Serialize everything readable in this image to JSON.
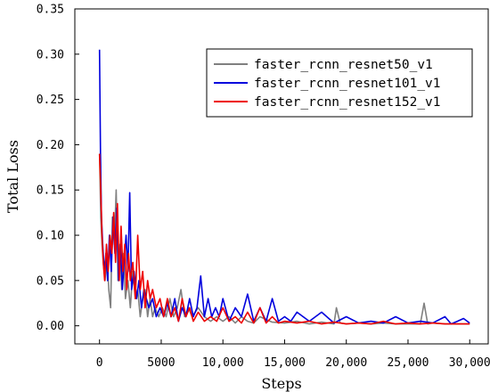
{
  "chart_data": {
    "type": "line",
    "xlabel": "Steps",
    "ylabel": "Total Loss",
    "xlim": [
      -2000,
      31500
    ],
    "ylim": [
      -0.02,
      0.35
    ],
    "x_ticks": [
      0,
      5000,
      10000,
      15000,
      20000,
      25000,
      30000
    ],
    "x_tick_labels": [
      "0",
      "5000",
      "10,000",
      "15,000",
      "20,000",
      "25,000",
      "30,000"
    ],
    "y_ticks": [
      0.0,
      0.05,
      0.1,
      0.15,
      0.2,
      0.25,
      0.3,
      0.35
    ],
    "y_tick_labels": [
      "0.00",
      "0.05",
      "0.10",
      "0.15",
      "0.20",
      "0.25",
      "0.30",
      "0.35"
    ],
    "grid": false,
    "legend": {
      "placement": "top-right"
    },
    "series": [
      {
        "name": "faster_rcnn_resnet50_v1",
        "color": "#808080",
        "x": [
          0,
          100,
          200,
          300,
          450,
          600,
          750,
          900,
          1050,
          1200,
          1350,
          1500,
          1650,
          1800,
          1950,
          2100,
          2300,
          2500,
          2700,
          2900,
          3100,
          3300,
          3500,
          3700,
          3900,
          4100,
          4300,
          4500,
          4800,
          5100,
          5400,
          5700,
          6000,
          6300,
          6600,
          6900,
          7200,
          7500,
          8000,
          8500,
          9000,
          9500,
          10000,
          10500,
          11000,
          11500,
          12000,
          12500,
          13000,
          14000,
          15000,
          16000,
          17000,
          18000,
          18500,
          19000,
          19200,
          19500,
          20000,
          21000,
          22000,
          23000,
          24000,
          25000,
          26000,
          26300,
          26600,
          27000,
          28000,
          29000,
          30000
        ],
        "values": [
          0.19,
          0.12,
          0.09,
          0.07,
          0.05,
          0.08,
          0.04,
          0.02,
          0.12,
          0.09,
          0.15,
          0.05,
          0.09,
          0.04,
          0.08,
          0.03,
          0.05,
          0.02,
          0.06,
          0.03,
          0.04,
          0.01,
          0.03,
          0.04,
          0.01,
          0.03,
          0.01,
          0.02,
          0.01,
          0.02,
          0.01,
          0.03,
          0.01,
          0.02,
          0.04,
          0.01,
          0.02,
          0.01,
          0.02,
          0.01,
          0.005,
          0.01,
          0.005,
          0.01,
          0.003,
          0.01,
          0.005,
          0.003,
          0.01,
          0.004,
          0.003,
          0.005,
          0.002,
          0.004,
          0.003,
          0.002,
          0.02,
          0.003,
          0.002,
          0.003,
          0.002,
          0.003,
          0.002,
          0.002,
          0.002,
          0.025,
          0.002,
          0.003,
          0.002,
          0.002,
          0.002
        ]
      },
      {
        "name": "faster_rcnn_resnet101_v1",
        "color": "#0000dd",
        "x": [
          0,
          80,
          160,
          260,
          380,
          520,
          660,
          800,
          950,
          1100,
          1250,
          1400,
          1550,
          1700,
          1850,
          2000,
          2150,
          2300,
          2450,
          2600,
          2800,
          3000,
          3200,
          3400,
          3600,
          3800,
          4000,
          4300,
          4600,
          4900,
          5200,
          5500,
          5800,
          6100,
          6400,
          6700,
          7000,
          7300,
          7600,
          7900,
          8200,
          8500,
          8800,
          9100,
          9400,
          9700,
          10000,
          10500,
          11000,
          11500,
          12000,
          12500,
          13000,
          13500,
          14000,
          14500,
          15000,
          15500,
          16000,
          17000,
          18000,
          19000,
          20000,
          21000,
          22000,
          23000,
          24000,
          25000,
          26000,
          27000,
          28000,
          28500,
          29000,
          29500,
          30000
        ],
        "values": [
          0.305,
          0.19,
          0.12,
          0.09,
          0.06,
          0.08,
          0.05,
          0.1,
          0.06,
          0.12,
          0.08,
          0.13,
          0.05,
          0.09,
          0.04,
          0.07,
          0.1,
          0.06,
          0.147,
          0.04,
          0.06,
          0.03,
          0.05,
          0.02,
          0.04,
          0.03,
          0.02,
          0.03,
          0.01,
          0.02,
          0.01,
          0.025,
          0.01,
          0.03,
          0.005,
          0.02,
          0.01,
          0.03,
          0.01,
          0.02,
          0.055,
          0.01,
          0.03,
          0.01,
          0.02,
          0.01,
          0.03,
          0.005,
          0.02,
          0.01,
          0.035,
          0.005,
          0.02,
          0.005,
          0.03,
          0.005,
          0.01,
          0.005,
          0.015,
          0.005,
          0.015,
          0.003,
          0.01,
          0.003,
          0.005,
          0.003,
          0.01,
          0.003,
          0.005,
          0.003,
          0.01,
          0.002,
          0.005,
          0.008,
          0.003
        ]
      },
      {
        "name": "faster_rcnn_resnet152_v1",
        "color": "#ee0000",
        "x": [
          0,
          100,
          200,
          300,
          420,
          560,
          700,
          850,
          1000,
          1150,
          1300,
          1450,
          1600,
          1750,
          1900,
          2050,
          2200,
          2350,
          2500,
          2700,
          2900,
          3100,
          3300,
          3500,
          3700,
          3900,
          4100,
          4300,
          4600,
          4900,
          5200,
          5500,
          5800,
          6100,
          6400,
          6700,
          7000,
          7300,
          7600,
          8000,
          8500,
          9000,
          9500,
          10000,
          10500,
          11000,
          11500,
          12000,
          12500,
          13000,
          13500,
          14000,
          14500,
          15000,
          16000,
          17000,
          18000,
          19000,
          20000,
          21000,
          22000,
          23000,
          24000,
          25000,
          26000,
          27000,
          28000,
          29000,
          30000
        ],
        "values": [
          0.19,
          0.15,
          0.1,
          0.07,
          0.05,
          0.09,
          0.06,
          0.1,
          0.08,
          0.125,
          0.07,
          0.135,
          0.05,
          0.11,
          0.06,
          0.09,
          0.04,
          0.08,
          0.05,
          0.07,
          0.03,
          0.1,
          0.04,
          0.06,
          0.02,
          0.05,
          0.03,
          0.04,
          0.02,
          0.03,
          0.01,
          0.03,
          0.01,
          0.02,
          0.005,
          0.03,
          0.01,
          0.02,
          0.005,
          0.015,
          0.005,
          0.01,
          0.005,
          0.02,
          0.005,
          0.01,
          0.003,
          0.015,
          0.003,
          0.02,
          0.003,
          0.01,
          0.003,
          0.005,
          0.003,
          0.005,
          0.002,
          0.004,
          0.002,
          0.003,
          0.002,
          0.005,
          0.002,
          0.003,
          0.002,
          0.003,
          0.002,
          0.002,
          0.002
        ]
      }
    ]
  }
}
